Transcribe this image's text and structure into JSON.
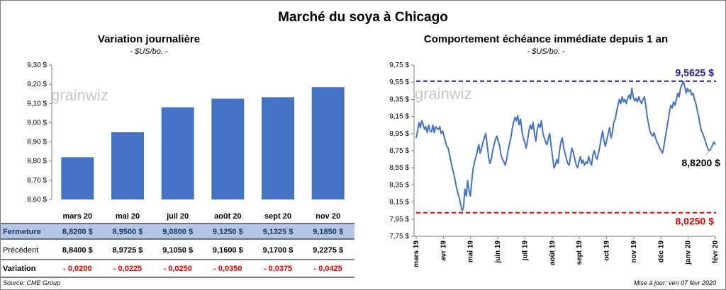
{
  "title": "Marché du soya à Chicago",
  "footer": {
    "source": "Source: CME Group",
    "updated": "Mise à jour: ven 07 févr 2020"
  },
  "logo": "grainwiz",
  "left": {
    "subtitle": "Variation journalière",
    "units": "- $US/bo. -"
  },
  "right": {
    "subtitle": "Comportement échéance immédiate depuis 1 an",
    "units": "- $US/bo. -"
  },
  "table": {
    "row_labels": [
      "Fermeture",
      "Précédent",
      "Variation"
    ],
    "fermeture": [
      "8,8200 $",
      "8,9500 $",
      "9,0800 $",
      "9,1250 $",
      "9,1325 $",
      "9,1850 $"
    ],
    "precedent": [
      "8,8400 $",
      "8,9725 $",
      "9,1050 $",
      "9,1600 $",
      "9,1700 $",
      "9,2275 $"
    ],
    "variation": [
      "- 0,0200",
      "- 0,0225",
      "- 0,0250",
      "- 0,0350",
      "- 0,0375",
      "- 0,0425"
    ]
  },
  "chart_data": [
    {
      "type": "bar",
      "title": "Variation journalière",
      "categories": [
        "mars 20",
        "mai 20",
        "juil 20",
        "août 20",
        "sept 20",
        "nov 20"
      ],
      "values": [
        8.82,
        8.95,
        9.08,
        9.125,
        9.1325,
        9.185
      ],
      "ylim": [
        8.6,
        9.3
      ],
      "yticks": [
        8.6,
        8.7,
        8.8,
        8.9,
        9.0,
        9.1,
        9.2,
        9.3
      ],
      "ytick_labels": [
        "8,60 $",
        "8,70 $",
        "8,80 $",
        "8,90 $",
        "9,00 $",
        "9,10 $",
        "9,20 $",
        "9,30 $"
      ],
      "color": "#4472c4"
    },
    {
      "type": "line",
      "title": "Comportement échéance immédiate depuis 1 an",
      "ylim": [
        7.75,
        9.75
      ],
      "yticks": [
        7.75,
        7.95,
        8.15,
        8.35,
        8.55,
        8.75,
        8.95,
        9.15,
        9.35,
        9.55,
        9.75
      ],
      "ytick_labels": [
        "7,75 $",
        "7,95 $",
        "8,15 $",
        "8,35 $",
        "8,55 $",
        "8,75 $",
        "8,95 $",
        "9,15 $",
        "9,35 $",
        "9,55 $",
        "9,75 $"
      ],
      "x_labels": [
        "mars 19",
        "avr 19",
        "mai 19",
        "juin 19",
        "juil 19",
        "août 19",
        "sept 19",
        "oct 19",
        "nov 19",
        "déc 19",
        "janv 20",
        "févr 20"
      ],
      "color": "#4472c4",
      "series": [
        {
          "values": [
            8.9,
            8.98,
            9.08,
            9.02,
            9.1,
            9.06,
            9.0,
            9.03,
            8.96,
            9.05,
            8.98,
            8.97,
            9.05,
            8.96,
            9.03,
            9.01,
            9.0,
            9.03,
            8.95,
            8.98,
            8.92,
            8.86,
            8.8,
            8.78,
            8.7,
            8.62,
            8.55,
            8.48,
            8.4,
            8.32,
            8.25,
            8.2,
            8.12,
            8.05,
            8.08,
            8.3,
            8.22,
            8.4,
            8.28,
            8.22,
            8.4,
            8.55,
            8.62,
            8.68,
            8.75,
            8.82,
            8.72,
            8.78,
            8.85,
            8.9,
            8.95,
            8.82,
            8.68,
            8.6,
            8.65,
            8.75,
            8.82,
            8.88,
            8.92,
            8.86,
            8.8,
            8.7,
            8.65,
            8.62,
            8.58,
            8.65,
            8.75,
            8.82,
            8.9,
            9.0,
            9.08,
            9.14,
            9.1,
            9.16,
            9.05,
            9.12,
            8.98,
            8.9,
            8.85,
            8.78,
            8.86,
            8.98,
            9.05,
            9.0,
            9.08,
            8.95,
            8.86,
            9.0,
            9.06,
            9.02,
            9.1,
            8.96,
            8.9,
            8.85,
            8.82,
            8.9,
            8.95,
            8.8,
            8.68,
            8.55,
            8.58,
            8.65,
            8.6,
            8.75,
            8.85,
            8.9,
            8.78,
            8.72,
            8.65,
            8.6,
            8.58,
            8.7,
            8.78,
            8.72,
            8.65,
            8.58,
            8.55,
            8.62,
            8.68,
            8.6,
            8.64,
            8.58,
            8.62,
            8.6,
            8.68,
            8.62,
            8.58,
            8.7,
            8.75,
            8.68,
            8.65,
            8.72,
            8.8,
            8.9,
            8.98,
            8.86,
            8.8,
            8.88,
            8.95,
            9.02,
            8.9,
            8.96,
            9.08,
            9.12,
            9.2,
            9.28,
            9.35,
            9.3,
            9.38,
            9.32,
            9.35,
            9.3,
            9.36,
            9.4,
            9.35,
            9.48,
            9.38,
            9.33,
            9.36,
            9.32,
            9.38,
            9.33,
            9.3,
            9.35,
            9.38,
            9.28,
            9.15,
            9.06,
            8.98,
            8.94,
            8.92,
            8.96,
            8.9,
            8.85,
            8.82,
            8.78,
            8.75,
            8.72,
            8.8,
            8.9,
            9.0,
            9.1,
            9.2,
            9.28,
            9.25,
            9.32,
            9.28,
            9.35,
            9.42,
            9.38,
            9.48,
            9.52,
            9.56,
            9.5,
            9.42,
            9.48,
            9.44,
            9.46,
            9.4,
            9.42,
            9.35,
            9.3,
            9.22,
            9.15,
            9.05,
            8.98,
            8.95,
            8.9,
            8.85,
            8.8,
            8.76,
            8.75,
            8.78,
            8.82,
            8.85,
            8.82
          ]
        }
      ],
      "hlines": [
        {
          "value": 9.5625,
          "label": "9,5625 $",
          "color": "#1f1f9f"
        },
        {
          "value": 8.025,
          "label": "8,0250 $",
          "color": "#e00000"
        }
      ],
      "last_value_label": "8,8200 $"
    }
  ]
}
